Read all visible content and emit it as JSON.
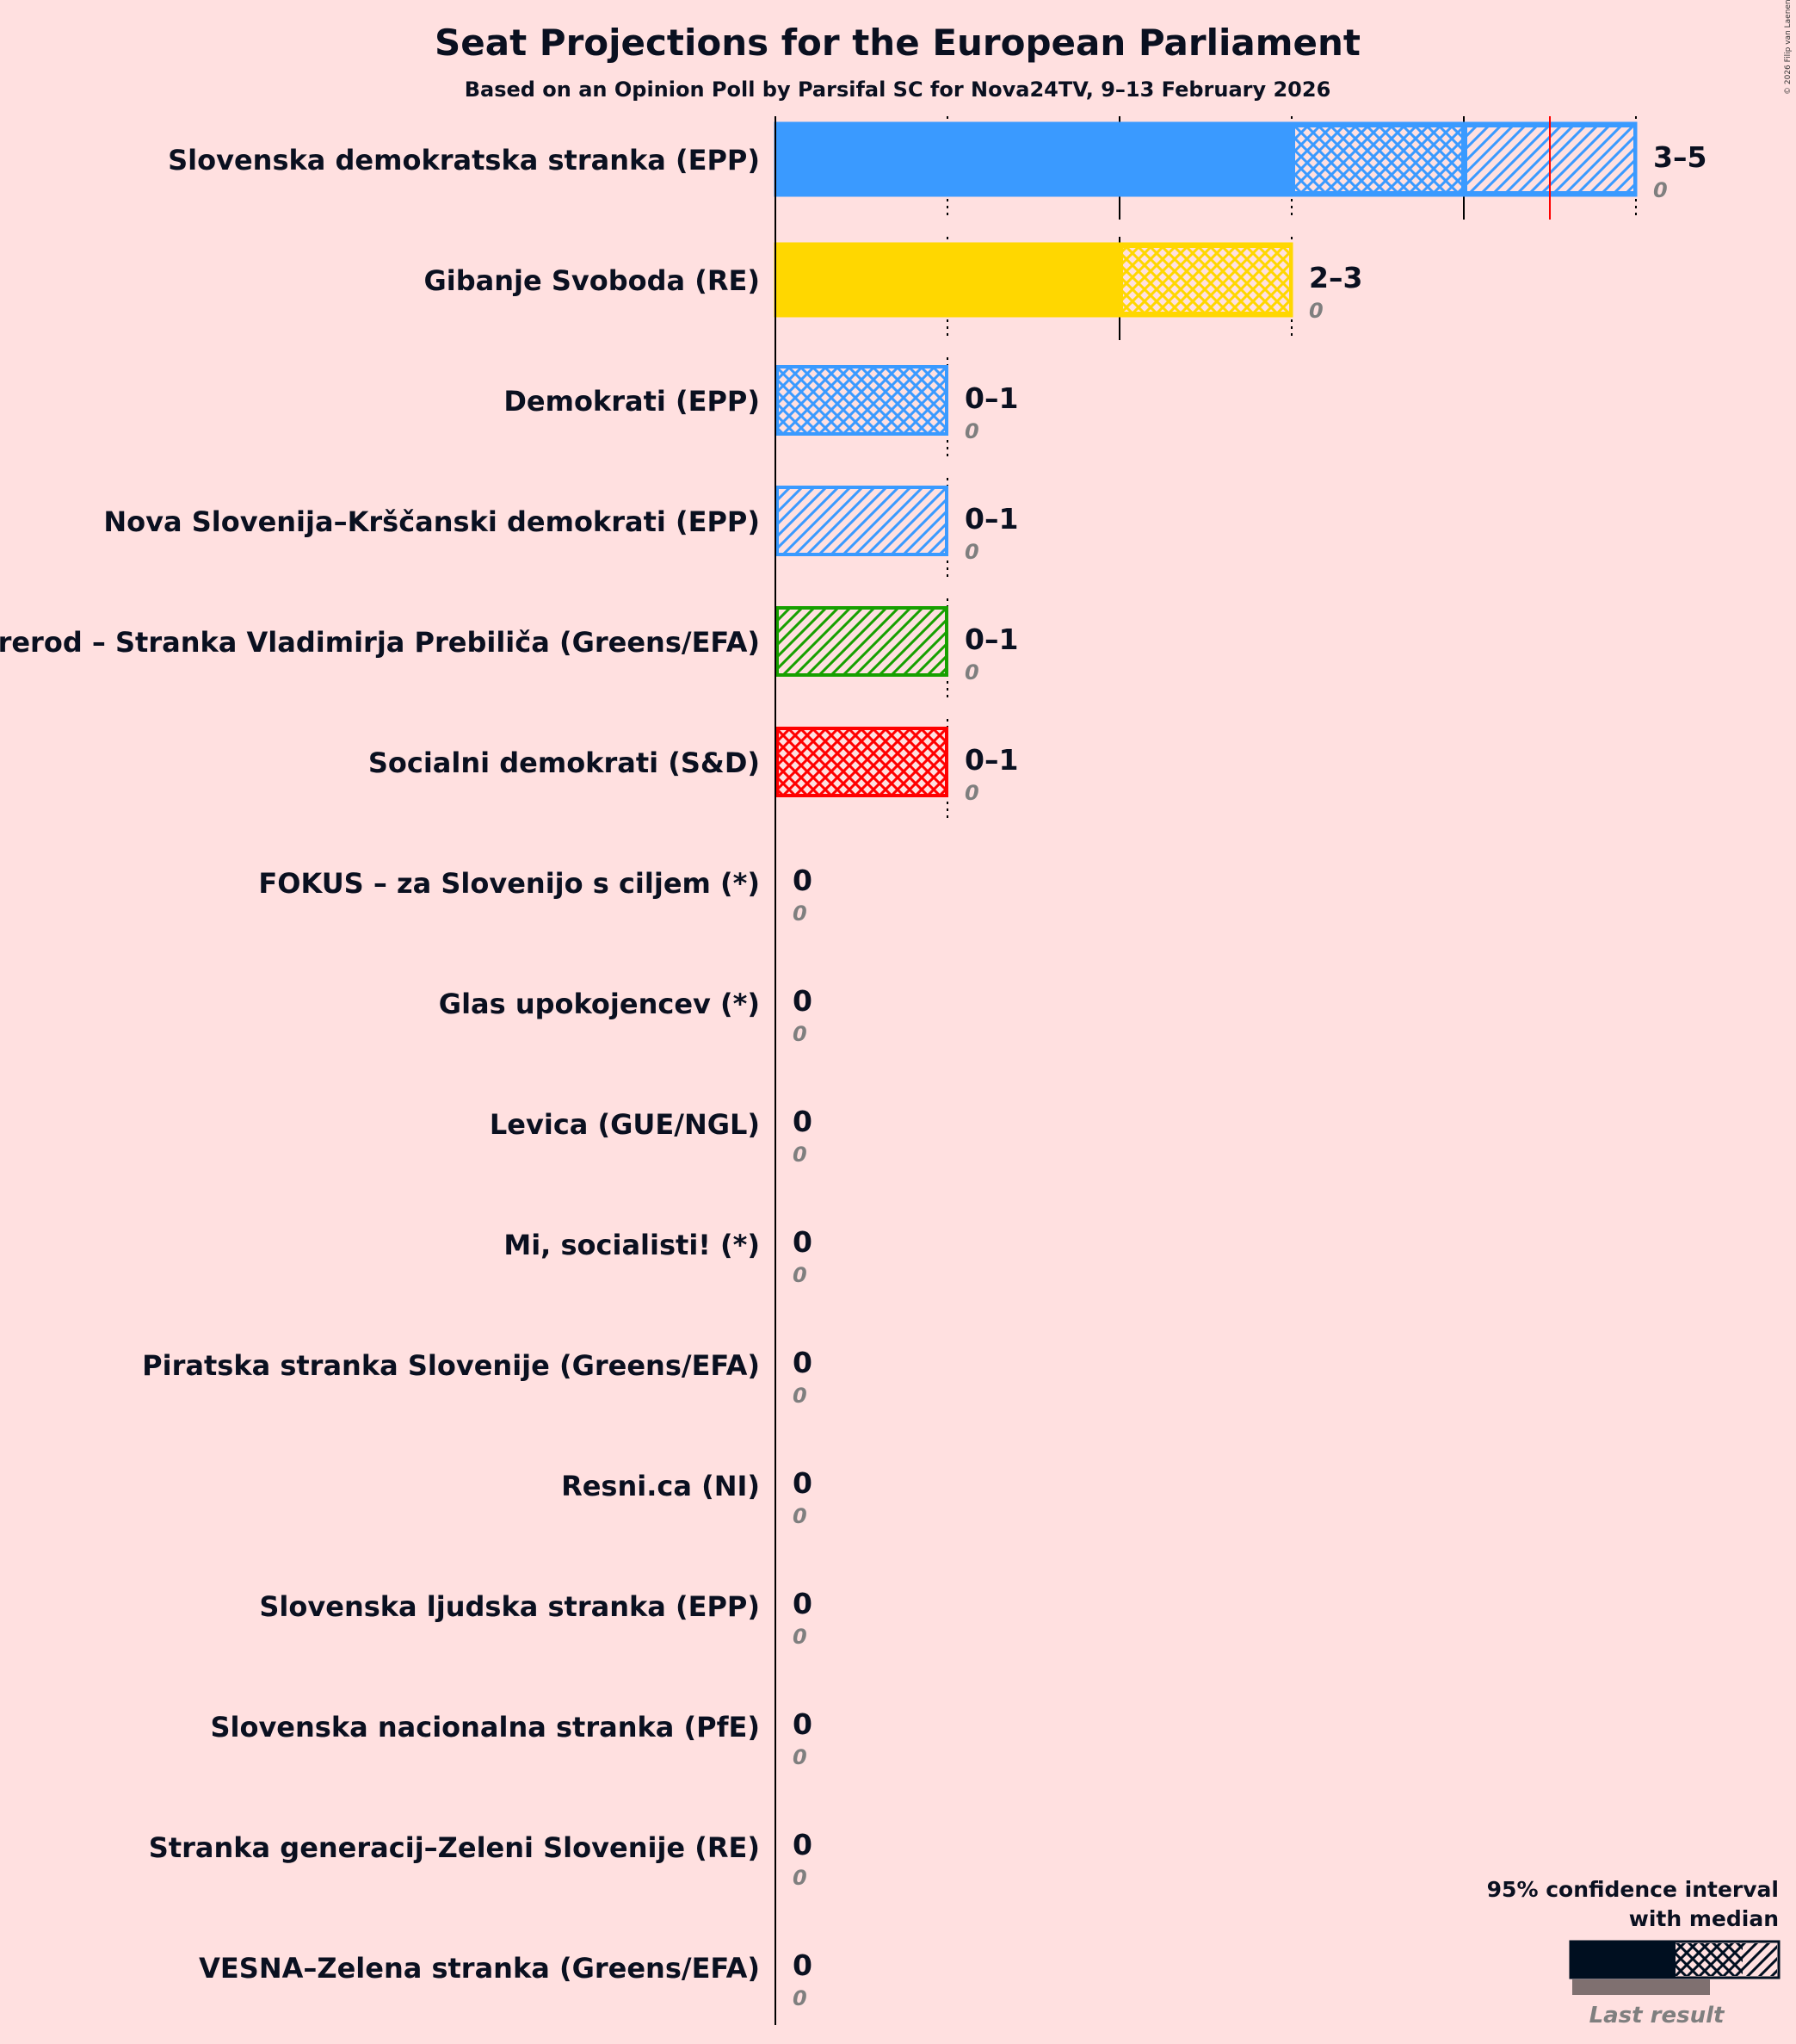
{
  "chart_data": {
    "type": "bar",
    "orientation": "horizontal",
    "title": "Seat Projections for the European Parliament",
    "subtitle": "Based on an Opinion Poll by Parsifal SC for Nova24TV, 9–13 February 2026",
    "copyright": "© 2026 Filip van Laenen",
    "xlim": [
      0,
      5
    ],
    "parties": [
      {
        "name": "Slovenska demokratska stranka (EPP)",
        "color": "#3A9AFF",
        "ci_low": 3,
        "median": 4,
        "ci_high": 5,
        "range_label": "3–5",
        "last_result": "0",
        "marker": 4.5
      },
      {
        "name": "Gibanje Svoboda (RE)",
        "color": "#FFD700",
        "ci_low": 2,
        "median": 3,
        "ci_high": 3,
        "range_label": "2–3",
        "last_result": "0"
      },
      {
        "name": "Demokrati (EPP)",
        "color": "#3A9AFF",
        "ci_low": 0,
        "median": 1,
        "ci_high": 1,
        "range_label": "0–1",
        "last_result": "0"
      },
      {
        "name": "Nova Slovenija–Krščanski demokrati (EPP)",
        "color": "#3A9AFF",
        "ci_low": 0,
        "median": 0,
        "ci_high": 1,
        "range_label": "0–1",
        "last_result": "0"
      },
      {
        "name": "Prerod – Stranka Vladimirja Prebiliča (Greens/EFA)",
        "color": "#17A000",
        "ci_low": 0,
        "median": 0,
        "ci_high": 1,
        "range_label": "0–1",
        "last_result": "0"
      },
      {
        "name": "Socialni demokrati (S&D)",
        "color": "#FF0000",
        "ci_low": 0,
        "median": 1,
        "ci_high": 1,
        "range_label": "0–1",
        "last_result": "0"
      },
      {
        "name": "FOKUS – za Slovenijo s ciljem (*)",
        "color": "#888888",
        "ci_low": 0,
        "median": 0,
        "ci_high": 0,
        "range_label": "0",
        "last_result": "0"
      },
      {
        "name": "Glas upokojencev (*)",
        "color": "#888888",
        "ci_low": 0,
        "median": 0,
        "ci_high": 0,
        "range_label": "0",
        "last_result": "0"
      },
      {
        "name": "Levica (GUE/NGL)",
        "color": "#888888",
        "ci_low": 0,
        "median": 0,
        "ci_high": 0,
        "range_label": "0",
        "last_result": "0"
      },
      {
        "name": "Mi, socialisti! (*)",
        "color": "#888888",
        "ci_low": 0,
        "median": 0,
        "ci_high": 0,
        "range_label": "0",
        "last_result": "0"
      },
      {
        "name": "Piratska stranka Slovenije (Greens/EFA)",
        "color": "#888888",
        "ci_low": 0,
        "median": 0,
        "ci_high": 0,
        "range_label": "0",
        "last_result": "0"
      },
      {
        "name": "Resni.ca (NI)",
        "color": "#888888",
        "ci_low": 0,
        "median": 0,
        "ci_high": 0,
        "range_label": "0",
        "last_result": "0"
      },
      {
        "name": "Slovenska ljudska stranka (EPP)",
        "color": "#888888",
        "ci_low": 0,
        "median": 0,
        "ci_high": 0,
        "range_label": "0",
        "last_result": "0"
      },
      {
        "name": "Slovenska nacionalna stranka (PfE)",
        "color": "#888888",
        "ci_low": 0,
        "median": 0,
        "ci_high": 0,
        "range_label": "0",
        "last_result": "0"
      },
      {
        "name": "Stranka generacij–Zeleni Slovenije (RE)",
        "color": "#888888",
        "ci_low": 0,
        "median": 0,
        "ci_high": 0,
        "range_label": "0",
        "last_result": "0"
      },
      {
        "name": "VESNA–Zelena stranka (Greens/EFA)",
        "color": "#888888",
        "ci_low": 0,
        "median": 0,
        "ci_high": 0,
        "range_label": "0",
        "last_result": "0"
      }
    ],
    "legend": {
      "line1": "95% confidence interval",
      "line2": "with median",
      "last_result_label": "Last result",
      "color": "#000F20",
      "last_color": "#7F7070",
      "placement": "bottom-right"
    }
  }
}
